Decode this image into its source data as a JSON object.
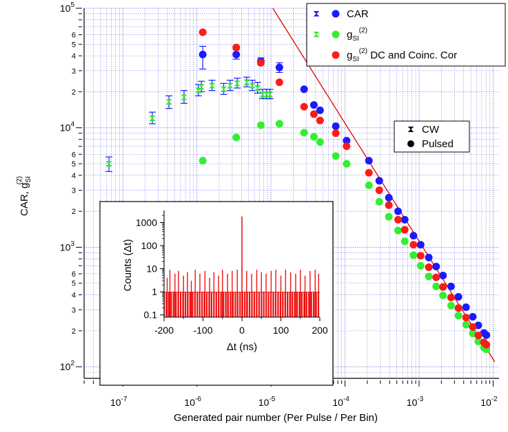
{
  "chart_data": [
    {
      "type": "scatter",
      "log_x": true,
      "log_y": true,
      "xlabel": "Generated pair number (Per Pulse / Per Bin)",
      "ylabel": "CAR, g",
      "ylabel_sub": "SI",
      "ylabel_sup": "(2)",
      "xlim": [
        3e-08,
        0.012
      ],
      "ylim": [
        80,
        100000
      ],
      "x_ticks": [
        {
          "value": 1e-07,
          "base": "10",
          "exp": "-7"
        },
        {
          "value": 1e-06,
          "base": "10",
          "exp": "-6"
        },
        {
          "value": 1e-05,
          "base": "10",
          "exp": "-5"
        },
        {
          "value": 0.0001,
          "base": "10",
          "exp": "-4"
        },
        {
          "value": 0.001,
          "base": "10",
          "exp": "-3"
        },
        {
          "value": 0.01,
          "base": "10",
          "exp": "-2"
        }
      ],
      "y_major_ticks": [
        {
          "value": 100,
          "base": "10",
          "exp": "2"
        },
        {
          "value": 1000,
          "base": "10",
          "exp": "3"
        },
        {
          "value": 10000,
          "base": "10",
          "exp": "4"
        },
        {
          "value": 100000,
          "base": "10",
          "exp": "5"
        }
      ],
      "y_minor_labels": [
        {
          "value": 200,
          "label": "2"
        },
        {
          "value": 300,
          "label": "3"
        },
        {
          "value": 400,
          "label": "4"
        },
        {
          "value": 500,
          "label": "5"
        },
        {
          "value": 600,
          "label": "6"
        },
        {
          "value": 2000,
          "label": "2"
        },
        {
          "value": 3000,
          "label": "3"
        },
        {
          "value": 4000,
          "label": "4"
        },
        {
          "value": 5000,
          "label": "5"
        },
        {
          "value": 6000,
          "label": "6"
        },
        {
          "value": 20000,
          "label": "2"
        },
        {
          "value": 30000,
          "label": "3"
        },
        {
          "value": 40000,
          "label": "4"
        },
        {
          "value": 50000,
          "label": "5"
        },
        {
          "value": 60000,
          "label": "6"
        }
      ],
      "grid": true,
      "colors": {
        "car": "#1a1aff",
        "g2": "#33ee33",
        "corr": "#ff1a1a",
        "fit": "#dd0000",
        "grid": "#6a6ae8"
      },
      "legend": {
        "position": "top-right",
        "entries": [
          {
            "text": "CAR",
            "sub": "",
            "sup": "",
            "rest": "",
            "color": "#1a1aff",
            "cw_marker": true
          },
          {
            "text": "g",
            "sub": "SI",
            "sup": "(2)",
            "rest": "",
            "color": "#33ee33",
            "cw_marker": true
          },
          {
            "text": "g",
            "sub": "SI",
            "sup": "(2)",
            "rest": " DC and Coinc. Cor",
            "color": "#ff1a1a",
            "cw_marker": false
          }
        ]
      },
      "marker_legend": {
        "position": "right",
        "entries": [
          {
            "marker": "bowtie",
            "label": "CW"
          },
          {
            "marker": "circle",
            "label": "Pulsed"
          }
        ]
      },
      "series": [
        {
          "name": "CAR",
          "mode": "CW",
          "color": "#1a1aff",
          "points": [
            {
              "x": 6.5e-08,
              "y": 5000,
              "err": [
                4300,
                5700
              ]
            },
            {
              "x": 2.5e-07,
              "y": 12000,
              "err": [
                10800,
                13500
              ]
            },
            {
              "x": 4.2e-07,
              "y": 16500,
              "err": [
                14500,
                18500
              ]
            },
            {
              "x": 6.7e-07,
              "y": 18000,
              "err": [
                16000,
                20500
              ]
            },
            {
              "x": 1.05e-06,
              "y": 20500,
              "err": [
                18500,
                23000
              ]
            },
            {
              "x": 1.15e-06,
              "y": 22000,
              "err": [
                20000,
                24500
              ]
            },
            {
              "x": 1.6e-06,
              "y": 22500,
              "err": [
                20500,
                25000
              ]
            },
            {
              "x": 2.3e-06,
              "y": 21000,
              "err": [
                19000,
                23500
              ]
            },
            {
              "x": 2.8e-06,
              "y": 22500,
              "err": [
                20500,
                25000
              ]
            },
            {
              "x": 3.5e-06,
              "y": 23500,
              "err": [
                21500,
                26000
              ]
            },
            {
              "x": 4.7e-06,
              "y": 24000,
              "err": [
                22000,
                26500
              ]
            },
            {
              "x": 5.6e-06,
              "y": 22500,
              "err": [
                20500,
                25000
              ]
            },
            {
              "x": 6.6e-06,
              "y": 21500,
              "err": [
                19500,
                24000
              ]
            },
            {
              "x": 7.7e-06,
              "y": 19000,
              "err": [
                17500,
                21000
              ]
            },
            {
              "x": 8.7e-06,
              "y": 19000,
              "err": [
                17500,
                21000
              ]
            },
            {
              "x": 9.7e-06,
              "y": 19000,
              "err": [
                17500,
                21000
              ]
            }
          ]
        },
        {
          "name": "g",
          "mode": "CW",
          "color": "#33ee33",
          "points": [
            {
              "x": 6.5e-08,
              "y": 5000
            },
            {
              "x": 2.5e-07,
              "y": 12000
            },
            {
              "x": 4.2e-07,
              "y": 16500
            },
            {
              "x": 6.7e-07,
              "y": 18000
            },
            {
              "x": 1.05e-06,
              "y": 20500
            },
            {
              "x": 1.15e-06,
              "y": 22000
            },
            {
              "x": 1.6e-06,
              "y": 22500
            },
            {
              "x": 2.3e-06,
              "y": 21000
            },
            {
              "x": 2.8e-06,
              "y": 22500
            },
            {
              "x": 3.5e-06,
              "y": 23500
            },
            {
              "x": 4.7e-06,
              "y": 24000
            },
            {
              "x": 5.6e-06,
              "y": 22500
            },
            {
              "x": 6.6e-06,
              "y": 21500
            },
            {
              "x": 7.7e-06,
              "y": 19000
            },
            {
              "x": 8.7e-06,
              "y": 19000
            },
            {
              "x": 9.7e-06,
              "y": 19000
            }
          ]
        },
        {
          "name": "CAR",
          "mode": "Pulsed",
          "color": "#1a1aff",
          "points": [
            {
              "x": 1.2e-06,
              "y": 41000,
              "err": [
                31000,
                48000
              ]
            },
            {
              "x": 3.4e-06,
              "y": 41000,
              "err": [
                37500,
                45000
              ]
            },
            {
              "x": 7.3e-06,
              "y": 36000,
              "err": [
                33500,
                38500
              ]
            },
            {
              "x": 1.3e-05,
              "y": 32000,
              "err": [
                29000,
                35000
              ]
            },
            {
              "x": 2.8e-05,
              "y": 21000
            },
            {
              "x": 3.8e-05,
              "y": 15500
            },
            {
              "x": 4.6e-05,
              "y": 14000
            },
            {
              "x": 7.5e-05,
              "y": 10300
            },
            {
              "x": 0.000105,
              "y": 7800
            },
            {
              "x": 0.00021,
              "y": 5300
            },
            {
              "x": 0.00029,
              "y": 3600
            },
            {
              "x": 0.00039,
              "y": 2600
            },
            {
              "x": 0.00052,
              "y": 2000
            },
            {
              "x": 0.00064,
              "y": 1700
            },
            {
              "x": 0.00084,
              "y": 1250
            },
            {
              "x": 0.00105,
              "y": 1050
            },
            {
              "x": 0.00135,
              "y": 820
            },
            {
              "x": 0.0017,
              "y": 690
            },
            {
              "x": 0.0021,
              "y": 580
            },
            {
              "x": 0.0027,
              "y": 470
            },
            {
              "x": 0.0034,
              "y": 385
            },
            {
              "x": 0.0043,
              "y": 315
            },
            {
              "x": 0.0053,
              "y": 262
            },
            {
              "x": 0.0063,
              "y": 222
            },
            {
              "x": 0.0075,
              "y": 192
            },
            {
              "x": 0.0081,
              "y": 184
            }
          ]
        },
        {
          "name": "g",
          "mode": "Pulsed",
          "color": "#33ee33",
          "points": [
            {
              "x": 1.2e-06,
              "y": 5300
            },
            {
              "x": 3.4e-06,
              "y": 8300
            },
            {
              "x": 7.3e-06,
              "y": 10500
            },
            {
              "x": 1.3e-05,
              "y": 10800
            },
            {
              "x": 2.8e-05,
              "y": 9100
            },
            {
              "x": 3.8e-05,
              "y": 8400
            },
            {
              "x": 4.6e-05,
              "y": 7600
            },
            {
              "x": 7.5e-05,
              "y": 5800
            },
            {
              "x": 0.000105,
              "y": 5000
            },
            {
              "x": 0.00021,
              "y": 3300
            },
            {
              "x": 0.00029,
              "y": 2400
            },
            {
              "x": 0.00039,
              "y": 1800
            },
            {
              "x": 0.00052,
              "y": 1380
            },
            {
              "x": 0.00064,
              "y": 1120
            },
            {
              "x": 0.00084,
              "y": 860
            },
            {
              "x": 0.00105,
              "y": 700
            },
            {
              "x": 0.00135,
              "y": 570
            },
            {
              "x": 0.0017,
              "y": 470
            },
            {
              "x": 0.0021,
              "y": 395
            },
            {
              "x": 0.0027,
              "y": 325
            },
            {
              "x": 0.0034,
              "y": 268
            },
            {
              "x": 0.0043,
              "y": 225
            },
            {
              "x": 0.0053,
              "y": 190
            },
            {
              "x": 0.0063,
              "y": 163
            },
            {
              "x": 0.0075,
              "y": 145
            },
            {
              "x": 0.0081,
              "y": 140
            }
          ]
        },
        {
          "name": "g DC and Coinc. Cor",
          "mode": "Pulsed",
          "color": "#ff1a1a",
          "points": [
            {
              "x": 1.2e-06,
              "y": 63000
            },
            {
              "x": 3.4e-06,
              "y": 47000
            },
            {
              "x": 7.3e-06,
              "y": 35000
            },
            {
              "x": 1.3e-05,
              "y": 24000
            },
            {
              "x": 2.8e-05,
              "y": 15000
            },
            {
              "x": 3.8e-05,
              "y": 13000
            },
            {
              "x": 4.6e-05,
              "y": 11500
            },
            {
              "x": 7.5e-05,
              "y": 9000
            },
            {
              "x": 0.000105,
              "y": 7000
            },
            {
              "x": 0.00021,
              "y": 4200
            },
            {
              "x": 0.00029,
              "y": 3000
            },
            {
              "x": 0.00039,
              "y": 2250
            },
            {
              "x": 0.00052,
              "y": 1700
            },
            {
              "x": 0.00064,
              "y": 1400
            },
            {
              "x": 0.00084,
              "y": 1050
            },
            {
              "x": 0.00105,
              "y": 850
            },
            {
              "x": 0.00135,
              "y": 680
            },
            {
              "x": 0.0017,
              "y": 560
            },
            {
              "x": 0.0021,
              "y": 465
            },
            {
              "x": 0.0027,
              "y": 380
            },
            {
              "x": 0.0034,
              "y": 310
            },
            {
              "x": 0.0043,
              "y": 258
            },
            {
              "x": 0.0053,
              "y": 215
            },
            {
              "x": 0.0063,
              "y": 183
            },
            {
              "x": 0.0075,
              "y": 160
            },
            {
              "x": 0.0081,
              "y": 153
            }
          ]
        }
      ],
      "fit_line": {
        "color": "#dd0000",
        "points": [
          {
            "x": 1.06e-05,
            "y": 100000
          },
          {
            "x": 0.0105,
            "y": 110
          }
        ]
      }
    },
    {
      "type": "line",
      "role": "inset",
      "log_y": true,
      "xlabel": "Δt (ns)",
      "ylabel": "Counts (Δt)",
      "xlim": [
        -200,
        200
      ],
      "ylim": [
        0.08,
        2500
      ],
      "x_ticks": [
        "-200",
        "-100",
        "0",
        "100",
        "200"
      ],
      "y_ticks": [
        {
          "value": 0.1,
          "label": "0.1"
        },
        {
          "value": 1,
          "label": "1"
        },
        {
          "value": 10,
          "label": "10"
        },
        {
          "value": 100,
          "label": "100"
        },
        {
          "value": 1000,
          "label": "1000"
        }
      ],
      "color": "#ee1111",
      "baseline_counts": 1,
      "peak": {
        "x": 0,
        "y": 1800
      },
      "side_peaks": [
        {
          "x": -192,
          "y": 4
        },
        {
          "x": -185,
          "y": 9
        },
        {
          "x": -172,
          "y": 6
        },
        {
          "x": -163,
          "y": 8
        },
        {
          "x": -150,
          "y": 5
        },
        {
          "x": -140,
          "y": 7
        },
        {
          "x": -130,
          "y": 3
        },
        {
          "x": -120,
          "y": 9
        },
        {
          "x": -108,
          "y": 6
        },
        {
          "x": -95,
          "y": 8
        },
        {
          "x": -83,
          "y": 4
        },
        {
          "x": -72,
          "y": 7
        },
        {
          "x": -60,
          "y": 5
        },
        {
          "x": -50,
          "y": 9
        },
        {
          "x": -37,
          "y": 6
        },
        {
          "x": -25,
          "y": 8
        },
        {
          "x": -12,
          "y": 9
        },
        {
          "x": 12,
          "y": 8
        },
        {
          "x": 25,
          "y": 6
        },
        {
          "x": 38,
          "y": 9
        },
        {
          "x": 50,
          "y": 7
        },
        {
          "x": 62,
          "y": 6
        },
        {
          "x": 75,
          "y": 8
        },
        {
          "x": 87,
          "y": 9
        },
        {
          "x": 100,
          "y": 5
        },
        {
          "x": 112,
          "y": 9
        },
        {
          "x": 125,
          "y": 7
        },
        {
          "x": 138,
          "y": 6
        },
        {
          "x": 150,
          "y": 9
        },
        {
          "x": 162,
          "y": 5
        },
        {
          "x": 175,
          "y": 8
        },
        {
          "x": 188,
          "y": 9
        },
        {
          "x": 197,
          "y": 6
        }
      ]
    }
  ]
}
